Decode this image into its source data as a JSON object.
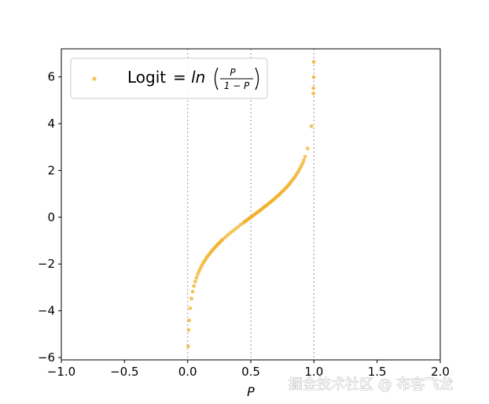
{
  "chart_data": {
    "type": "scatter",
    "xlabel": "P",
    "ylabel": "",
    "xlim": [
      -1.0,
      2.0
    ],
    "ylim": [
      -6.1,
      7.2
    ],
    "x_ticks": [
      -1.0,
      -0.5,
      0.0,
      0.5,
      1.0,
      1.5,
      2.0
    ],
    "x_tick_labels": [
      "−1.0",
      "−0.5",
      "0.0",
      "0.5",
      "1.0",
      "1.5",
      "2.0"
    ],
    "y_ticks": [
      -6,
      -4,
      -2,
      0,
      2,
      4,
      6
    ],
    "y_tick_labels": [
      "−6",
      "−4",
      "−2",
      "0",
      "2",
      "4",
      "6"
    ],
    "vlines": [
      0.0,
      0.5,
      1.0
    ],
    "grid": false,
    "legend": {
      "placement": "top-left",
      "text": "Logit",
      "formula_prefix": "= ln",
      "formula_numerator": "P",
      "formula_denominator": "1 − P"
    },
    "series": [
      {
        "name": "Logit",
        "x": [
          0.004,
          0.008,
          0.012,
          0.02,
          0.03,
          0.04,
          0.05,
          0.06,
          0.07,
          0.08,
          0.09,
          0.1,
          0.11,
          0.12,
          0.13,
          0.14,
          0.15,
          0.16,
          0.17,
          0.18,
          0.19,
          0.2,
          0.21,
          0.22,
          0.23,
          0.24,
          0.25,
          0.26,
          0.27,
          0.28,
          0.3,
          0.32,
          0.34,
          0.36,
          0.38,
          0.4,
          0.42,
          0.44,
          0.45,
          0.46,
          0.47,
          0.48,
          0.49,
          0.5,
          0.51,
          0.52,
          0.53,
          0.54,
          0.55,
          0.56,
          0.57,
          0.58,
          0.59,
          0.6,
          0.61,
          0.62,
          0.63,
          0.64,
          0.65,
          0.66,
          0.67,
          0.68,
          0.69,
          0.7,
          0.71,
          0.72,
          0.73,
          0.74,
          0.75,
          0.76,
          0.77,
          0.78,
          0.79,
          0.8,
          0.81,
          0.82,
          0.83,
          0.84,
          0.85,
          0.86,
          0.87,
          0.88,
          0.89,
          0.9,
          0.91,
          0.92,
          0.93,
          0.95,
          0.98,
          0.995,
          0.996,
          0.9975,
          0.9987
        ],
        "y": [
          -5.52,
          -4.82,
          -4.41,
          -3.89,
          -3.48,
          -3.18,
          -2.94,
          -2.75,
          -2.59,
          -2.44,
          -2.31,
          -2.2,
          -2.09,
          -1.99,
          -1.9,
          -1.82,
          -1.73,
          -1.66,
          -1.59,
          -1.52,
          -1.45,
          -1.39,
          -1.32,
          -1.27,
          -1.21,
          -1.15,
          -1.1,
          -1.05,
          -0.99,
          -0.94,
          -0.85,
          -0.75,
          -0.66,
          -0.58,
          -0.49,
          -0.41,
          -0.32,
          -0.24,
          -0.2,
          -0.16,
          -0.12,
          -0.08,
          -0.04,
          0.0,
          0.04,
          0.08,
          0.12,
          0.16,
          0.2,
          0.24,
          0.28,
          0.32,
          0.36,
          0.41,
          0.45,
          0.49,
          0.53,
          0.58,
          0.62,
          0.66,
          0.71,
          0.75,
          0.8,
          0.85,
          0.9,
          0.94,
          0.99,
          1.05,
          1.1,
          1.15,
          1.21,
          1.27,
          1.32,
          1.39,
          1.45,
          1.52,
          1.59,
          1.66,
          1.73,
          1.82,
          1.9,
          1.99,
          2.09,
          2.2,
          2.31,
          2.44,
          2.59,
          2.94,
          3.89,
          5.29,
          5.52,
          5.99,
          6.64
        ]
      }
    ],
    "colors": {
      "point": "#f0ad1e",
      "vline": "#b0b0b0"
    }
  },
  "watermark": {
    "text": "掘金技术社区 @ 布客飞龙"
  }
}
